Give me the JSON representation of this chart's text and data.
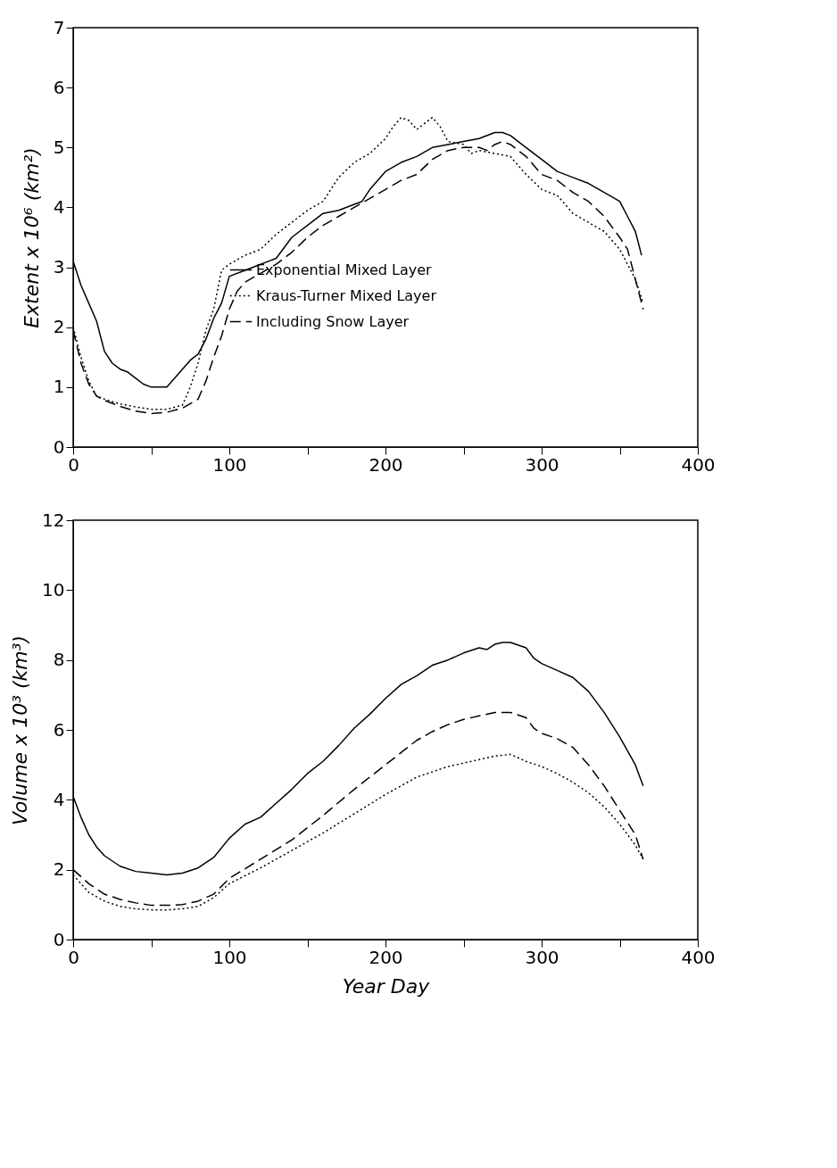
{
  "chart_data": [
    {
      "type": "line",
      "ylabel": "Extent x 10⁶ (km²)",
      "xlim": [
        0,
        400
      ],
      "ylim": [
        0,
        7
      ],
      "xticks": [
        0,
        {
          "value": 50,
          "label": null
        },
        100,
        {
          "value": 150,
          "label": null
        },
        200,
        {
          "value": 250,
          "label": null
        },
        300,
        {
          "value": 350,
          "label": null
        },
        400
      ],
      "yticks": [
        0,
        1,
        2,
        3,
        4,
        5,
        6,
        7
      ],
      "legend": "bottom",
      "marker": "none",
      "series": [
        {
          "name": "Exponential Mixed Layer",
          "color": "#000000",
          "line_style": "solid",
          "x": [
            0,
            5,
            10,
            15,
            20,
            25,
            30,
            35,
            40,
            45,
            50,
            55,
            60,
            65,
            70,
            75,
            80,
            85,
            90,
            95,
            100,
            110,
            120,
            125,
            130,
            140,
            150,
            160,
            170,
            180,
            185,
            190,
            200,
            210,
            220,
            230,
            240,
            250,
            260,
            270,
            275,
            280,
            290,
            300,
            310,
            320,
            330,
            340,
            350,
            355,
            360,
            364
          ],
          "values": [
            3.1,
            2.7,
            2.4,
            2.1,
            1.6,
            1.4,
            1.3,
            1.25,
            1.15,
            1.05,
            1.0,
            1.0,
            1.0,
            1.15,
            1.3,
            1.45,
            1.55,
            1.8,
            2.15,
            2.4,
            2.85,
            2.95,
            3.05,
            3.1,
            3.15,
            3.5,
            3.7,
            3.9,
            3.95,
            4.05,
            4.1,
            4.3,
            4.6,
            4.75,
            4.85,
            5.0,
            5.05,
            5.1,
            5.15,
            5.25,
            5.25,
            5.2,
            5.0,
            4.8,
            4.6,
            4.5,
            4.4,
            4.25,
            4.1,
            3.85,
            3.6,
            3.2
          ]
        },
        {
          "name": "Kraus-Turner Mixed Layer",
          "color": "#000000",
          "line_style": "dotted",
          "x": [
            0,
            5,
            10,
            15,
            20,
            30,
            40,
            50,
            60,
            70,
            75,
            80,
            85,
            90,
            95,
            100,
            110,
            120,
            130,
            140,
            150,
            160,
            165,
            170,
            180,
            190,
            200,
            205,
            210,
            215,
            220,
            230,
            235,
            240,
            250,
            255,
            260,
            270,
            280,
            290,
            300,
            310,
            320,
            330,
            340,
            350,
            360,
            365
          ],
          "values": [
            2.0,
            1.5,
            1.1,
            0.85,
            0.8,
            0.72,
            0.67,
            0.63,
            0.63,
            0.7,
            1.0,
            1.4,
            1.95,
            2.3,
            2.95,
            3.05,
            3.2,
            3.3,
            3.55,
            3.75,
            3.95,
            4.1,
            4.3,
            4.5,
            4.75,
            4.9,
            5.15,
            5.35,
            5.5,
            5.45,
            5.3,
            5.5,
            5.35,
            5.1,
            5.05,
            4.9,
            4.95,
            4.9,
            4.85,
            4.55,
            4.3,
            4.2,
            3.9,
            3.75,
            3.6,
            3.3,
            2.8,
            2.4
          ]
        },
        {
          "name": "Including Snow Layer",
          "color": "#000000",
          "line_style": "dashed",
          "x": [
            0,
            5,
            10,
            15,
            20,
            30,
            40,
            50,
            60,
            70,
            80,
            85,
            90,
            95,
            100,
            105,
            110,
            120,
            130,
            140,
            150,
            160,
            170,
            180,
            190,
            200,
            210,
            220,
            230,
            240,
            250,
            260,
            265,
            270,
            275,
            280,
            290,
            300,
            310,
            320,
            330,
            340,
            350,
            355,
            360,
            365
          ],
          "values": [
            1.95,
            1.4,
            1.05,
            0.85,
            0.78,
            0.68,
            0.6,
            0.56,
            0.58,
            0.65,
            0.8,
            1.1,
            1.5,
            1.85,
            2.3,
            2.6,
            2.75,
            2.9,
            3.05,
            3.25,
            3.5,
            3.7,
            3.85,
            4.0,
            4.15,
            4.3,
            4.45,
            4.55,
            4.8,
            4.95,
            5.0,
            5.0,
            4.95,
            5.05,
            5.1,
            5.05,
            4.85,
            4.55,
            4.45,
            4.25,
            4.1,
            3.85,
            3.5,
            3.3,
            2.8,
            2.3
          ]
        }
      ]
    },
    {
      "type": "line",
      "xlabel": "Year Day",
      "ylabel": "Volume x 10³ (km³)",
      "xlim": [
        0,
        400
      ],
      "ylim": [
        0,
        12
      ],
      "xticks": [
        0,
        {
          "value": 50,
          "label": null
        },
        100,
        {
          "value": 150,
          "label": null
        },
        200,
        {
          "value": 250,
          "label": null
        },
        300,
        {
          "value": 350,
          "label": null
        },
        400
      ],
      "yticks": [
        0,
        2,
        4,
        6,
        8,
        10,
        12
      ],
      "legend": false,
      "marker": "none",
      "series": [
        {
          "color": "#000000",
          "line_style": "solid",
          "x": [
            0,
            5,
            10,
            15,
            20,
            30,
            40,
            50,
            60,
            70,
            80,
            90,
            100,
            110,
            120,
            130,
            140,
            150,
            160,
            170,
            180,
            190,
            200,
            210,
            220,
            230,
            240,
            250,
            260,
            265,
            270,
            275,
            280,
            290,
            295,
            300,
            310,
            320,
            330,
            340,
            350,
            360,
            365
          ],
          "values": [
            4.1,
            3.5,
            3.0,
            2.65,
            2.4,
            2.1,
            1.95,
            1.9,
            1.85,
            1.9,
            2.05,
            2.35,
            2.9,
            3.3,
            3.5,
            3.9,
            4.3,
            4.75,
            5.1,
            5.55,
            6.05,
            6.45,
            6.9,
            7.3,
            7.55,
            7.85,
            8.0,
            8.2,
            8.35,
            8.3,
            8.45,
            8.5,
            8.5,
            8.35,
            8.05,
            7.9,
            7.7,
            7.5,
            7.1,
            6.5,
            5.8,
            5.0,
            4.4
          ]
        },
        {
          "color": "#000000",
          "line_style": "dotted",
          "x": [
            0,
            10,
            20,
            30,
            40,
            50,
            60,
            70,
            80,
            90,
            100,
            120,
            140,
            160,
            180,
            200,
            210,
            220,
            240,
            260,
            270,
            280,
            290,
            300,
            310,
            320,
            330,
            340,
            350,
            360,
            365
          ],
          "values": [
            1.85,
            1.35,
            1.1,
            0.95,
            0.88,
            0.85,
            0.85,
            0.88,
            0.95,
            1.2,
            1.6,
            2.05,
            2.55,
            3.05,
            3.6,
            4.15,
            4.4,
            4.65,
            4.95,
            5.15,
            5.25,
            5.3,
            5.1,
            4.95,
            4.75,
            4.5,
            4.2,
            3.8,
            3.3,
            2.7,
            2.3
          ]
        },
        {
          "color": "#000000",
          "line_style": "dashed",
          "x": [
            0,
            10,
            20,
            30,
            40,
            50,
            60,
            70,
            80,
            90,
            100,
            120,
            140,
            160,
            180,
            200,
            210,
            220,
            230,
            240,
            250,
            260,
            270,
            280,
            290,
            295,
            300,
            310,
            320,
            330,
            340,
            350,
            360,
            365
          ],
          "values": [
            2.0,
            1.6,
            1.3,
            1.15,
            1.05,
            0.98,
            0.98,
            1.0,
            1.1,
            1.3,
            1.75,
            2.3,
            2.85,
            3.55,
            4.3,
            5.0,
            5.35,
            5.7,
            5.95,
            6.15,
            6.3,
            6.4,
            6.5,
            6.5,
            6.35,
            6.05,
            5.9,
            5.75,
            5.5,
            5.0,
            4.4,
            3.7,
            3.0,
            2.3
          ]
        }
      ]
    }
  ]
}
